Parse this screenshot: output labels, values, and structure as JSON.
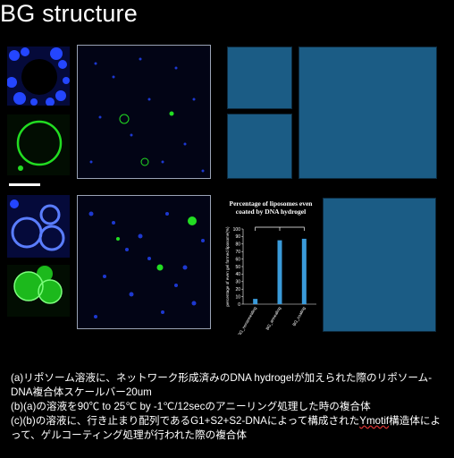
{
  "title": "BG structure",
  "caption": {
    "line_a": "(a)リポソーム溶液に、ネットワーク形成済みのDNA hydrogelが加えられた際のリポソーム-DNA複合体スケールバー20um",
    "line_b": "(b)(a)の溶液を90℃ to 25℃ by -1℃/12secのアニーリング処理した時の複合体",
    "line_c_pre": "(c)(b)の溶液に、行き止まり配列であるG1+S2+S2-DNAによって構成された",
    "line_c_ul": "Ymotif",
    "line_c_post": "構造体によって、ゲルコーティング処理が行われた際の複合体"
  },
  "colors": {
    "tile": "#1b5c85",
    "bar": "#3a9ad9",
    "fluor_green": "#22dd22",
    "fluor_blue": "#2446ff"
  },
  "chart_data": {
    "type": "bar",
    "title": "Percentage of liposomes even coated by DNA hydrogel",
    "ylabel": "percentage of even gel formed liposome(%)",
    "categories": [
      "BG_nonannealing",
      "BG_annealing",
      "BG_coating"
    ],
    "values": [
      7,
      85,
      87
    ],
    "ylim": [
      0,
      100
    ],
    "yticks": [
      0,
      10,
      20,
      30,
      40,
      50,
      60,
      70,
      80,
      90,
      100
    ],
    "grid": false,
    "legend": "none"
  }
}
